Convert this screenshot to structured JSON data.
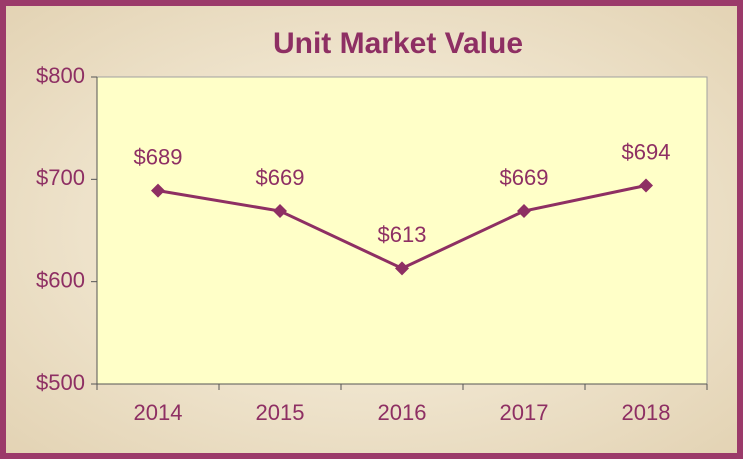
{
  "chart_data": {
    "type": "line",
    "title": "Unit Market Value",
    "categories": [
      "2014",
      "2015",
      "2016",
      "2017",
      "2018"
    ],
    "series": [
      {
        "name": "Unit Market Value",
        "color": "#8e2f63",
        "values": [
          689,
          669,
          613,
          669,
          694
        ],
        "value_labels": [
          "$689",
          "$669",
          "$613",
          "$669",
          "$694"
        ]
      }
    ],
    "ylim": [
      500,
      800
    ],
    "yticks": [
      {
        "value": 500,
        "label": "$500"
      },
      {
        "value": 600,
        "label": "$600"
      },
      {
        "value": 700,
        "label": "$700"
      },
      {
        "value": 800,
        "label": "$800"
      }
    ],
    "grid": false
  }
}
